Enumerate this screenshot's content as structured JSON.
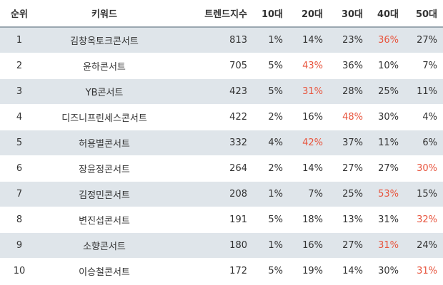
{
  "headers": {
    "rank": "순위",
    "keyword": "키워드",
    "trend_index": "트렌드지수",
    "age10": "10대",
    "age20": "20대",
    "age30": "30대",
    "age40": "40대",
    "age50": "50대"
  },
  "colors": {
    "highlight": "#e8553e",
    "stripe": "#dfe5ea",
    "text": "#333333"
  },
  "rows": [
    {
      "rank": "1",
      "keyword": "김창옥토크콘서트",
      "trend_index": "813",
      "age10": "1%",
      "age20": "14%",
      "age30": "23%",
      "age40": "36%",
      "age50": "27%",
      "max": "age40"
    },
    {
      "rank": "2",
      "keyword": "윤하콘서트",
      "trend_index": "705",
      "age10": "5%",
      "age20": "43%",
      "age30": "36%",
      "age40": "10%",
      "age50": "7%",
      "max": "age20"
    },
    {
      "rank": "3",
      "keyword": "YB콘서트",
      "trend_index": "423",
      "age10": "5%",
      "age20": "31%",
      "age30": "28%",
      "age40": "25%",
      "age50": "11%",
      "max": "age20"
    },
    {
      "rank": "4",
      "keyword": "디즈니프린세스콘서트",
      "trend_index": "422",
      "age10": "2%",
      "age20": "16%",
      "age30": "48%",
      "age40": "30%",
      "age50": "4%",
      "max": "age30"
    },
    {
      "rank": "5",
      "keyword": "허용별콘서트",
      "trend_index": "332",
      "age10": "4%",
      "age20": "42%",
      "age30": "37%",
      "age40": "11%",
      "age50": "6%",
      "max": "age20"
    },
    {
      "rank": "6",
      "keyword": "장윤정콘서트",
      "trend_index": "264",
      "age10": "2%",
      "age20": "14%",
      "age30": "27%",
      "age40": "27%",
      "age50": "30%",
      "max": "age50"
    },
    {
      "rank": "7",
      "keyword": "김정민콘서트",
      "trend_index": "208",
      "age10": "1%",
      "age20": "7%",
      "age30": "25%",
      "age40": "53%",
      "age50": "15%",
      "max": "age40"
    },
    {
      "rank": "8",
      "keyword": "변진섭콘서트",
      "trend_index": "191",
      "age10": "5%",
      "age20": "18%",
      "age30": "13%",
      "age40": "31%",
      "age50": "32%",
      "max": "age50"
    },
    {
      "rank": "9",
      "keyword": "소향콘서트",
      "trend_index": "180",
      "age10": "1%",
      "age20": "16%",
      "age30": "27%",
      "age40": "31%",
      "age50": "24%",
      "max": "age40"
    },
    {
      "rank": "10",
      "keyword": "이승철콘서트",
      "trend_index": "172",
      "age10": "5%",
      "age20": "19%",
      "age30": "14%",
      "age40": "30%",
      "age50": "31%",
      "max": "age50"
    }
  ]
}
